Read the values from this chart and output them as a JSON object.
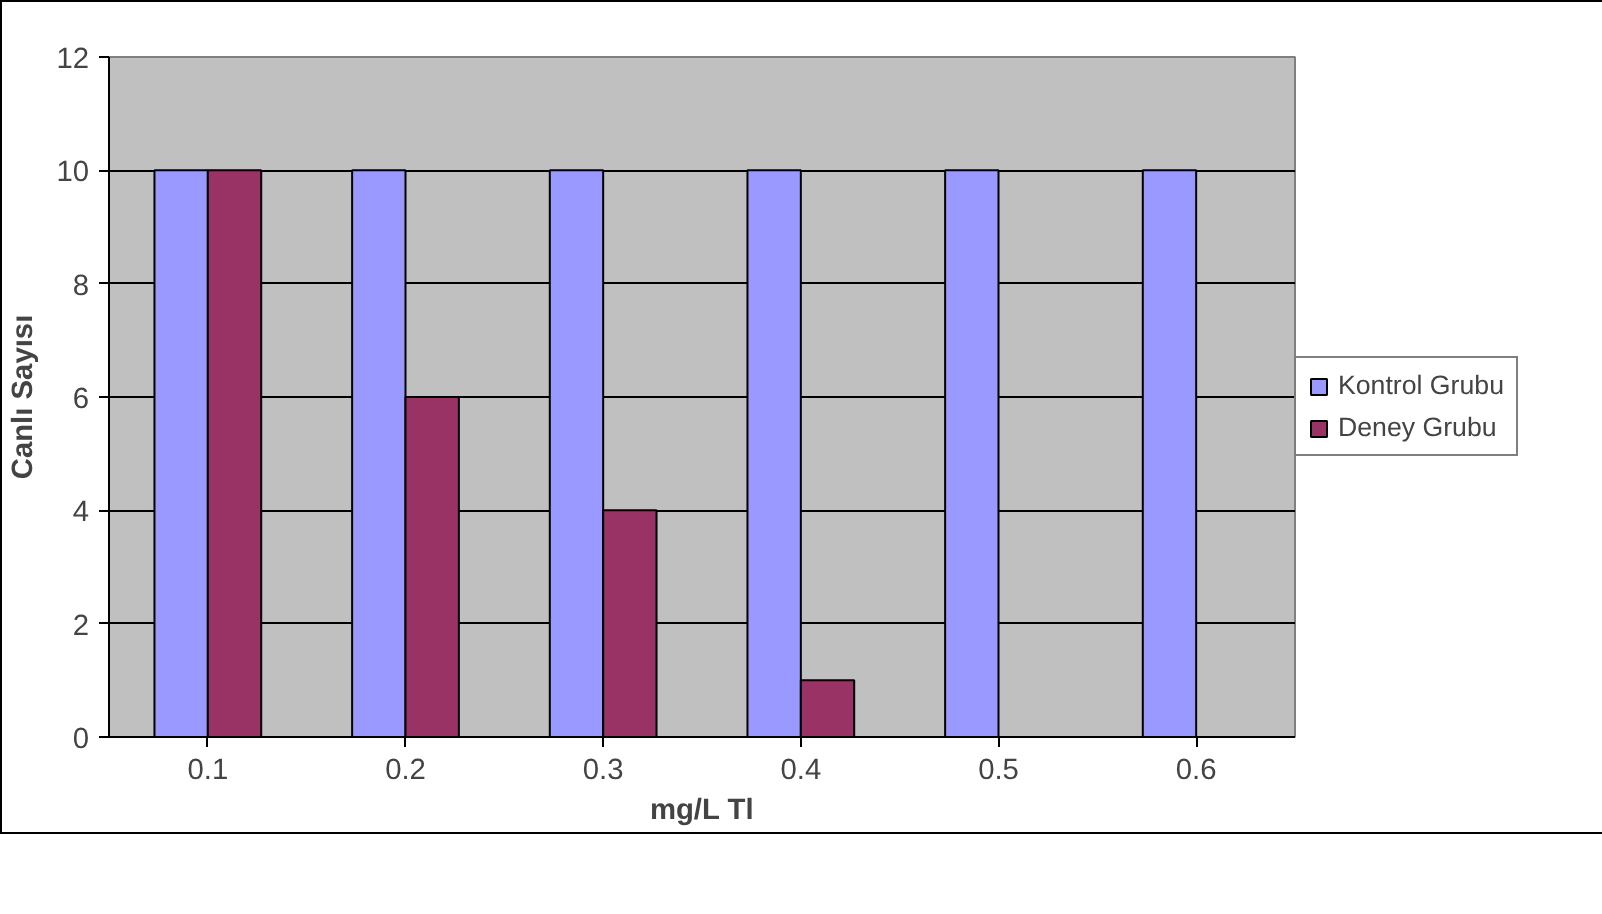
{
  "chart_data": {
    "type": "bar",
    "xlabel": "mg/L Tl",
    "ylabel": "Canlı Sayısı",
    "categories": [
      "0.1",
      "0.2",
      "0.3",
      "0.4",
      "0.5",
      "0.6"
    ],
    "series": [
      {
        "name": "Kontrol Grubu",
        "color": "#9999ff",
        "values": [
          10,
          10,
          10,
          10,
          10,
          10
        ]
      },
      {
        "name": "Deney Grubu",
        "color": "#993366",
        "values": [
          10,
          6,
          4,
          1,
          null,
          null
        ]
      }
    ],
    "ylim": [
      0,
      12
    ],
    "yticks": [
      0,
      2,
      4,
      6,
      8,
      10,
      12
    ],
    "grid": "y",
    "legend": "right"
  }
}
